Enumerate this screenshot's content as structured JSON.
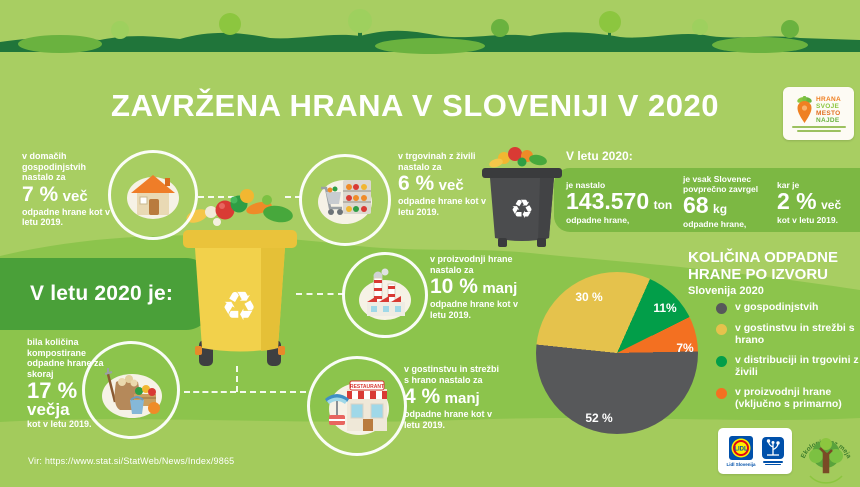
{
  "title": "ZAVRŽENA HRANA V SLOVENIJI V 2020",
  "campaign_badge": {
    "words": [
      "HRANA",
      "SVOJE",
      "MESTO",
      "NAJDE"
    ]
  },
  "intro": {
    "label": "V letu 2020 je:"
  },
  "callouts": [
    {
      "pre": "v domačih gospodinjstvih nastalo za",
      "value": "7 %",
      "word": "več",
      "post": "odpadne hrane kot v letu 2019."
    },
    {
      "pre": "v trgovinah z živili nastalo za",
      "value": "6 %",
      "word": "več",
      "post": "odpadne hrane kot v letu 2019."
    },
    {
      "pre": "v proizvodnji hrane nastalo za",
      "value": "10 %",
      "word": "manj",
      "post": "odpadne hrane kot v letu 2019."
    },
    {
      "pre": "v gostinstvu in strežbi s hrano nastalo za",
      "value": "4 %",
      "word": "manj",
      "post": "odpadne hrane kot v letu 2019."
    },
    {
      "pre": "bila količina kompostirane odpadne hrane za skoraj",
      "value": "17 %",
      "word": "večja",
      "post": "kot v letu 2019."
    }
  ],
  "stats": {
    "heading": "V letu 2020:",
    "items": [
      {
        "pre": "je nastalo",
        "value": "143.570",
        "unit": "ton",
        "post": "odpadne hrane,"
      },
      {
        "pre": "je vsak Slovenec povprečno zavrgel",
        "value": "68",
        "unit": "kg",
        "post": "odpadne hrane,"
      },
      {
        "pre": "kar je",
        "value": "2 %",
        "unit": "več",
        "post": "kot v letu 2019."
      }
    ]
  },
  "chart_data": {
    "type": "pie",
    "title": "KOLIČINA ODPADNE HRANE PO IZVORU",
    "subtitle": "Slovenija 2020",
    "legend_position": "right",
    "start_angle": 24,
    "draw_order": [
      2,
      3,
      0,
      1
    ],
    "slices": [
      {
        "label": "v gospodinjstvih",
        "value": 52,
        "display": "52 %",
        "color": "#57585a"
      },
      {
        "label": "v gostinstvu in strežbi s hrano",
        "value": 30,
        "display": "30 %",
        "color": "#e5c24c"
      },
      {
        "label": "v distribuciji in trgovini z živili",
        "value": 11,
        "display": "11%",
        "color": "#029e49"
      },
      {
        "label": "v proizvodnji hrane (vključno s primarno)",
        "value": 7,
        "display": "7%",
        "color": "#f37021"
      }
    ]
  },
  "icons": {
    "recycle": "♻"
  },
  "restaurant_sign": "RESTAURANT",
  "source": "Vir: https://www.stat.si/StatWeb/News/Index/9865",
  "partners": {
    "lidl_label": "Lidl Slovenija",
    "lidl_logo_text": "LIDL",
    "ngo_label": "Ekologi brez meja"
  }
}
